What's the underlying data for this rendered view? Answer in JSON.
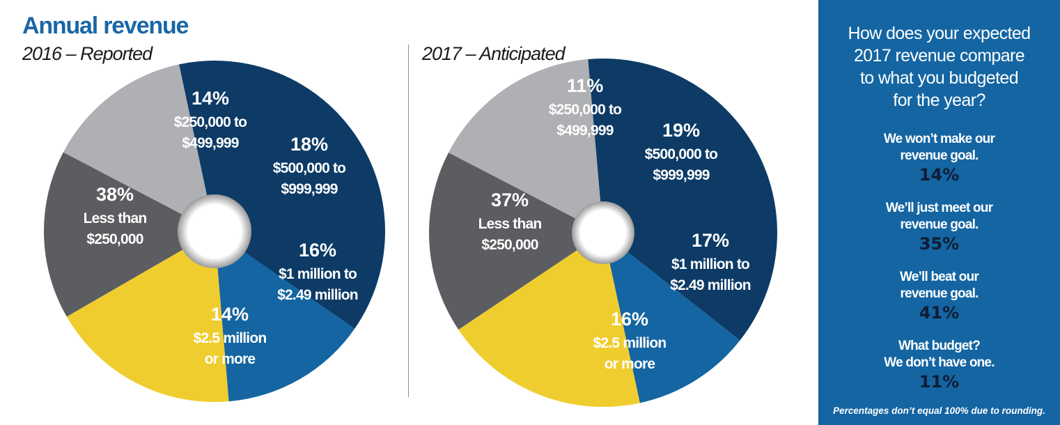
{
  "title": "Annual revenue",
  "panel": {
    "question": "How does your expected\n2017 revenue compare\nto what you budgeted\nfor the year?",
    "responses": [
      {
        "label": "We won’t make our\nrevenue goal.",
        "value": "14%"
      },
      {
        "label": "We’ll just meet our\nrevenue goal.",
        "value": "35%"
      },
      {
        "label": "We’ll beat our\nrevenue goal.",
        "value": "41%"
      },
      {
        "label": "What budget?\nWe don’t have one.",
        "value": "11%"
      }
    ],
    "footnote": "Percentages don’t equal 100% due to rounding."
  },
  "colors": {
    "navy": "#0d3b66",
    "blue": "#1465a2",
    "yellow": "#f0cd2f",
    "dark_gray": "#5b5d60",
    "light_gray": "#aeb0b3",
    "title_blue": "#1a66a6"
  },
  "chart_data": [
    {
      "type": "pie",
      "title": "2016 – Reported",
      "slices": [
        {
          "label": "Less than $250,000",
          "label_lines": [
            "38%",
            "Less than",
            "$250,000"
          ],
          "value": 38,
          "color": "#0d3b66"
        },
        {
          "label": "$250,000 to $499,999",
          "label_lines": [
            "14%",
            "$250,000 to",
            "$499,999"
          ],
          "value": 14,
          "color": "#1465a2"
        },
        {
          "label": "$500,000 to $999,999",
          "label_lines": [
            "18%",
            "$500,000 to",
            "$999,999"
          ],
          "value": 18,
          "color": "#f0cd2f"
        },
        {
          "label": "$1 million to $2.49 million",
          "label_lines": [
            "16%",
            "$1 million to",
            "$2.49 million"
          ],
          "value": 16,
          "color": "#5b5d60"
        },
        {
          "label": "$2.5 million or more",
          "label_lines": [
            "14%",
            "$2.5 million",
            "or more"
          ],
          "value": 14,
          "color": "#aeb0b3"
        }
      ]
    },
    {
      "type": "pie",
      "title": "2017 – Anticipated",
      "slices": [
        {
          "label": "Less than $250,000",
          "label_lines": [
            "37%",
            "Less than",
            "$250,000"
          ],
          "value": 37,
          "color": "#0d3b66"
        },
        {
          "label": "$250,000 to $499,999",
          "label_lines": [
            "11%",
            "$250,000 to",
            "$499,999"
          ],
          "value": 11,
          "color": "#1465a2"
        },
        {
          "label": "$500,000 to $999,999",
          "label_lines": [
            "19%",
            "$500,000 to",
            "$999,999"
          ],
          "value": 19,
          "color": "#f0cd2f"
        },
        {
          "label": "$1 million to $2.49 million",
          "label_lines": [
            "17%",
            "$1 million to",
            "$2.49 million"
          ],
          "value": 17,
          "color": "#5b5d60"
        },
        {
          "label": "$2.5 million or more",
          "label_lines": [
            "16%",
            "$2.5 million",
            "or more"
          ],
          "value": 16,
          "color": "#aeb0b3"
        }
      ]
    }
  ]
}
